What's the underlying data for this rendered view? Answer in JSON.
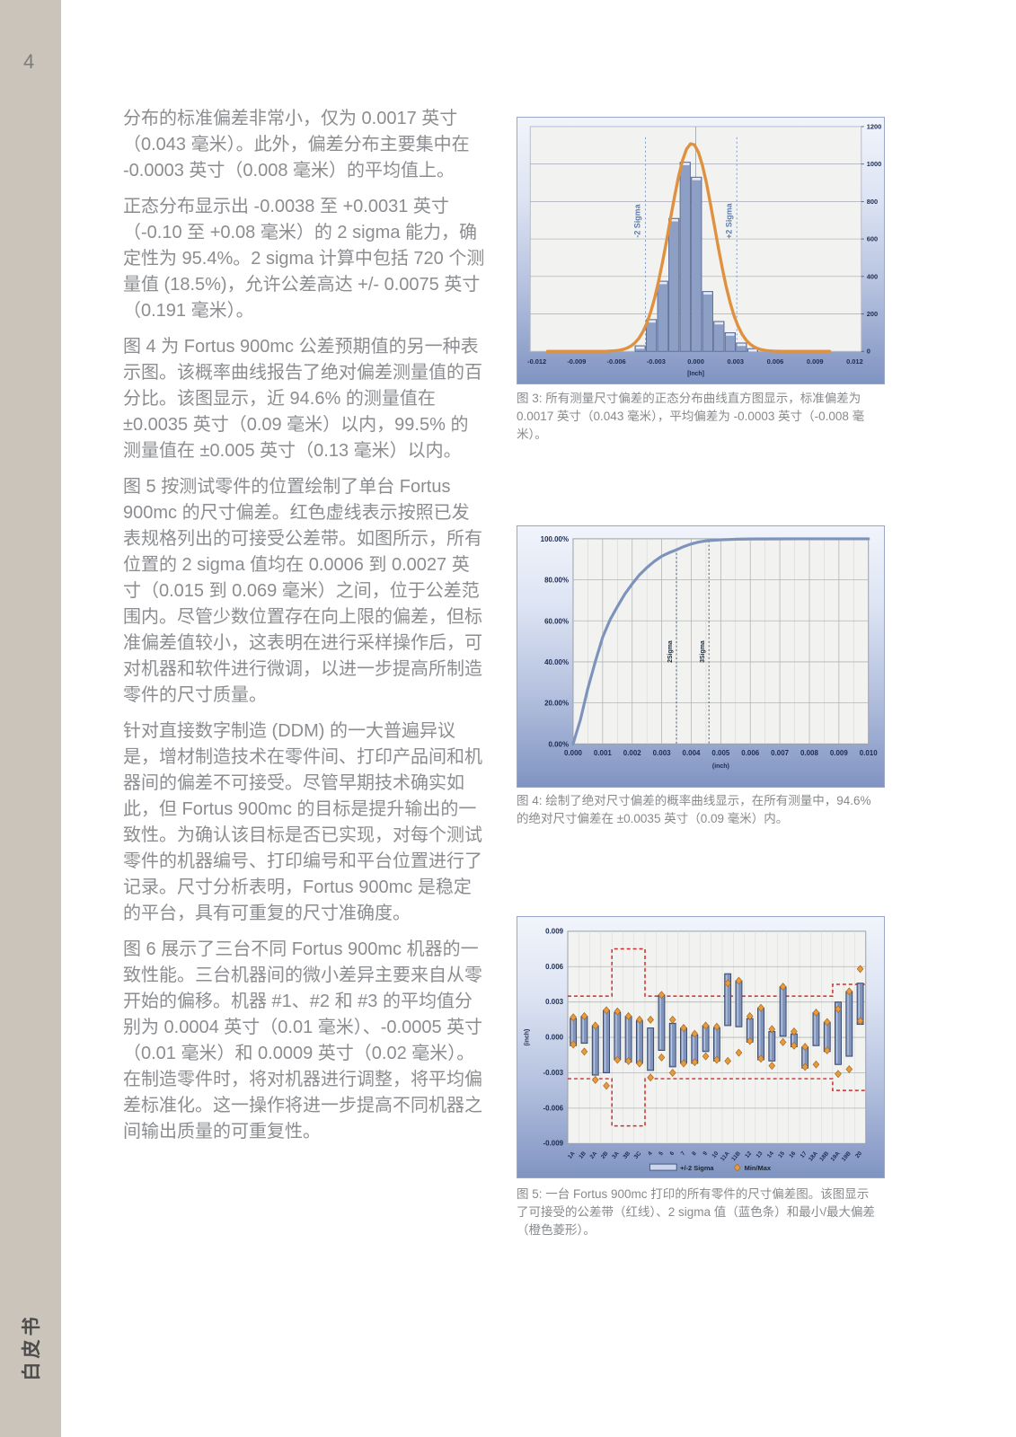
{
  "page": {
    "number": "4",
    "side_label": "白皮书"
  },
  "colors": {
    "sidebar_bg": "#cbc4ba",
    "body_text": "#8b8d90",
    "axis_text": "#1c2b52",
    "plot_bg": "#f2f3f0",
    "grid": "#b2b6b4",
    "grid_minor": "#d3d6d2",
    "hist_bar": "#8e9fc6",
    "hist_bar_border": "#50618d",
    "hist_bar_cap": "#e4ebf6",
    "gauss_curve": "#e0913f",
    "cum_curve": "#7e93bb",
    "range_bar": "#8093bb",
    "range_bar_border": "#2f4068",
    "range_bar_highlight": "#bcc8e0",
    "minmax_diamond": "#e79a40",
    "minmax_diamond_border": "#a66a1c",
    "tolerance_line": "#cb2d2d",
    "sigma_label_blue": "#5d7db3",
    "sigma_line_blue": "#7d97c5",
    "sigma_line_dark": "#3d5570"
  },
  "paragraphs": [
    "分布的标准偏差非常小，仅为 0.0017 英寸（0.043 毫米）。此外，偏差分布主要集中在 -0.0003 英寸（0.008 毫米）的平均值上。",
    "正态分布显示出 -0.0038 至 +0.0031 英寸（-0.10 至 +0.08 毫米）的 2 sigma 能力，确定性为 95.4%。2 sigma 计算中包括 720 个测量值 (18.5%)，允许公差高达 +/- 0.0075 英寸（0.191 毫米）。",
    "图 4 为 Fortus 900mc 公差预期值的另一种表示图。该概率曲线报告了绝对偏差测量值的百分比。该图显示，近 94.6% 的测量值在 ±0.0035 英寸（0.09 毫米）以内，99.5% 的测量值在 ±0.005 英寸（0.13 毫米）以内。",
    "图 5 按测试零件的位置绘制了单台 Fortus 900mc 的尺寸偏差。红色虚线表示按照已发表规格列出的可接受公差带。如图所示，所有位置的 2 sigma 值均在 0.0006 到 0.0027 英寸（0.015 到 0.069 毫米）之间，位于公差范围内。尽管少数位置存在向上限的偏差，但标准偏差值较小，这表明在进行采样操作后，可对机器和软件进行微调，以进一步提高所制造零件的尺寸质量。",
    "针对直接数字制造 (DDM) 的一大普遍异议是，增材制造技术在零件间、打印产品间和机器间的偏差不可接受。尽管早期技术确实如此，但 Fortus 900mc 的目标是提升输出的一致性。为确认该目标是否已实现，对每个测试零件的机器编号、打印编号和平台位置进行了记录。尺寸分析表明，Fortus 900mc 是稳定的平台，具有可重复的尺寸准确度。",
    "图 6 展示了三台不同 Fortus 900mc 机器的一致性能。三台机器间的微小差异主要来自从零开始的偏移。机器 #1、#2 和 #3 的平均值分别为 0.0004 英寸（0.01 毫米）、-0.0005 英寸（0.01 毫米）和 0.0009 英寸（0.02 毫米）。在制造零件时，将对机器进行调整，将平均偏差标准化。这一操作将进一步提高不同机器之间输出质量的可重复性。"
  ],
  "captions": {
    "fig3": "图 3: 所有测量尺寸偏差的正态分布曲线直方图显示，标准偏差为 0.0017 英寸（0.043 毫米），平均偏差为 -0.0003 英寸（-0.008 毫米）。",
    "fig4": "图 4: 绘制了绝对尺寸偏差的概率曲线显示，在所有测量中，94.6% 的绝对尺寸偏差在 ±0.0035 英寸（0.09 毫米）内。",
    "fig5": "图 5: 一台 Fortus 900mc 打印的所有零件的尺寸偏差图。该图显示了可接受的公差带（红线）、2 sigma 值（蓝色条）和最小/最大偏差（橙色菱形）。"
  },
  "chart_data": [
    {
      "id": "figure3",
      "type": "bar",
      "title": "",
      "xlabel": "[Inch]",
      "ylabel": "",
      "xlim": [
        -0.0125,
        0.0125
      ],
      "ylim": [
        0,
        1200
      ],
      "x_ticks": [
        "-0.012",
        "-0.009",
        "-0.006",
        "-0.003",
        "0.000",
        "0.003",
        "0.006",
        "0.009",
        "0.012"
      ],
      "y_ticks": [
        "0",
        "200",
        "400",
        "600",
        "800",
        "1000",
        "1200"
      ],
      "bars": {
        "bin_width": 0.00085,
        "centers": [
          -0.0042,
          -0.00335,
          -0.0025,
          -0.00165,
          -0.0008,
          5e-05,
          0.0009,
          0.00175,
          0.0026,
          0.00345,
          0.0043
        ],
        "heights": [
          30,
          170,
          375,
          710,
          1010,
          930,
          320,
          160,
          100,
          45,
          15
        ]
      },
      "curve": {
        "shape": "gaussian",
        "mean": -0.0003,
        "sigma": 0.0017,
        "peak": 1110
      },
      "sigma_lines": [
        {
          "x": -0.0038,
          "label": "-2 Sigma"
        },
        {
          "x": 0.0031,
          "label": "+2 Sigma"
        }
      ]
    },
    {
      "id": "figure4",
      "type": "line",
      "title": "",
      "xlabel": "(inch)",
      "ylabel": "",
      "xlim": [
        0,
        0.01
      ],
      "ylim_pct": [
        0,
        100
      ],
      "x_ticks": [
        "0.000",
        "0.001",
        "0.002",
        "0.003",
        "0.004",
        "0.005",
        "0.006",
        "0.007",
        "0.008",
        "0.009",
        "0.010"
      ],
      "y_ticks": [
        "0.00%",
        "20.00%",
        "40.00%",
        "60.00%",
        "80.00%",
        "100.00%"
      ],
      "points": [
        [
          0,
          0
        ],
        [
          0.00025,
          12
        ],
        [
          0.0005,
          27
        ],
        [
          0.00075,
          40
        ],
        [
          0.001,
          52
        ],
        [
          0.00125,
          60.5
        ],
        [
          0.0015,
          67
        ],
        [
          0.00175,
          73
        ],
        [
          0.002,
          78
        ],
        [
          0.00225,
          82.5
        ],
        [
          0.0025,
          86
        ],
        [
          0.00275,
          89
        ],
        [
          0.003,
          91.5
        ],
        [
          0.00325,
          93.2
        ],
        [
          0.0035,
          94.6
        ],
        [
          0.00375,
          96.2
        ],
        [
          0.004,
          97.5
        ],
        [
          0.00425,
          98.4
        ],
        [
          0.0045,
          99
        ],
        [
          0.00475,
          99.3
        ],
        [
          0.005,
          99.5
        ],
        [
          0.0055,
          99.8
        ],
        [
          0.006,
          99.9
        ],
        [
          0.007,
          99.95
        ],
        [
          0.008,
          100
        ],
        [
          0.009,
          100
        ],
        [
          0.01,
          100
        ]
      ],
      "sigma_lines": [
        {
          "x": 0.0035,
          "label": "2Sigma",
          "top_pct": 95
        },
        {
          "x": 0.0046,
          "label": "3Sigma",
          "top_pct": 99
        }
      ]
    },
    {
      "id": "figure5",
      "type": "range-bar",
      "title": "",
      "xlabel": "",
      "ylabel": "(inch)",
      "ylim": [
        -0.009,
        0.009
      ],
      "y_ticks": [
        "0.009",
        "0.006",
        "0.003",
        "0.000",
        "-0.003",
        "-0.006",
        "-0.009"
      ],
      "categories": [
        "1A",
        "1B",
        "2A",
        "2B",
        "3A",
        "3B",
        "3C",
        "4",
        "5",
        "6",
        "7",
        "8",
        "9",
        "10",
        "11A",
        "11B",
        "12",
        "13",
        "14",
        "15",
        "16",
        "17",
        "18A",
        "18B",
        "19A",
        "19B",
        "20"
      ],
      "sigma_bars": [
        [
          -0.0007,
          0.0016
        ],
        [
          -0.0005,
          0.0018
        ],
        [
          -0.0032,
          0.001
        ],
        [
          -0.003,
          0.0023
        ],
        [
          -0.0019,
          0.0021
        ],
        [
          -0.0021,
          0.0018
        ],
        [
          -0.0022,
          0.0014
        ],
        [
          -0.0028,
          0.0008
        ],
        [
          -0.0011,
          0.0036
        ],
        [
          -0.0025,
          0.0012
        ],
        [
          -0.0022,
          0.0008
        ],
        [
          -0.0022,
          0.0002
        ],
        [
          -0.0012,
          0.001
        ],
        [
          -0.002,
          0.0008
        ],
        [
          0.001,
          0.0054
        ],
        [
          0.0009,
          0.0048
        ],
        [
          -0.0004,
          0.0016
        ],
        [
          -0.0019,
          0.0025
        ],
        [
          -0.002,
          0.0005
        ],
        [
          0.0001,
          0.0043
        ],
        [
          -0.0008,
          0.0003
        ],
        [
          -0.0026,
          -0.0008
        ],
        [
          -0.0007,
          0.0021
        ],
        [
          -0.0012,
          0.0013
        ],
        [
          -0.0023,
          0.003
        ],
        [
          -0.0016,
          0.0039
        ],
        [
          0.0011,
          0.0046
        ]
      ],
      "minmax": [
        [
          -0.0006,
          0.0017
        ],
        [
          -0.0012,
          0.0018
        ],
        [
          -0.0036,
          0.001
        ],
        [
          -0.0041,
          0.0023
        ],
        [
          -0.0019,
          0.0022
        ],
        [
          -0.002,
          0.0018
        ],
        [
          -0.0022,
          0.0015
        ],
        [
          -0.0034,
          0.0015
        ],
        [
          -0.0017,
          0.0036
        ],
        [
          -0.003,
          0.0015
        ],
        [
          -0.0022,
          0.0008
        ],
        [
          -0.0021,
          0.0003
        ],
        [
          -0.0016,
          0.001
        ],
        [
          -0.0019,
          0.0009
        ],
        [
          -0.002,
          0.0046
        ],
        [
          -0.0013,
          0.0048
        ],
        [
          -0.0003,
          0.0018
        ],
        [
          -0.0018,
          0.0025
        ],
        [
          -0.0024,
          0.0007
        ],
        [
          -0.0004,
          0.0043
        ],
        [
          -0.0007,
          0.0005
        ],
        [
          -0.0025,
          -0.0008
        ],
        [
          -0.0023,
          0.0021
        ],
        [
          -0.0011,
          0.0013
        ],
        [
          -0.0031,
          0.0024
        ],
        [
          -0.0027,
          0.0039
        ],
        [
          0.0014,
          0.0058
        ]
      ],
      "tolerance_segments": [
        {
          "start_index": 0,
          "end_index": 3,
          "limit": 0.0035
        },
        {
          "start_index": 4,
          "end_index": 6,
          "limit": 0.0075
        },
        {
          "start_index": 7,
          "end_index": 23,
          "limit": 0.0035
        },
        {
          "start_index": 24,
          "end_index": 26,
          "limit": 0.0045
        }
      ],
      "legend": [
        "+/-2 Sigma",
        "Min/Max"
      ]
    }
  ]
}
